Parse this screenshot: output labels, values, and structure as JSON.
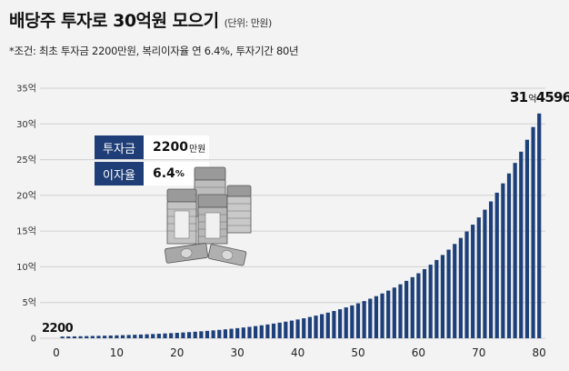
{
  "title": "배당주 투자로 30억원 모으기",
  "unit_note": "(단위: 만원)",
  "subtitle": "*조건: 최초 투자금 2200만원, 복리이자율 연 6.4%, 투자기간 80년",
  "info_box": {
    "principal_label": "투자금",
    "principal_value": "2200",
    "principal_unit": "만원",
    "rate_label": "이자율",
    "rate_value": "6.4",
    "rate_unit": "%"
  },
  "annotations": {
    "start_value": "2200",
    "end_major": "31",
    "end_major_unit": "억",
    "end_minor": "4596"
  },
  "icon": "money-stack-icon",
  "colors": {
    "bar": "#1d3f7a",
    "label_bg": "#1f3e77",
    "background": "#f3f3f3"
  },
  "chart_data": {
    "type": "bar",
    "title": "배당주 투자로 30억원 모으기",
    "xlabel": "",
    "ylabel": "",
    "x": [
      1,
      2,
      3,
      4,
      5,
      6,
      7,
      8,
      9,
      10,
      11,
      12,
      13,
      14,
      15,
      16,
      17,
      18,
      19,
      20,
      21,
      22,
      23,
      24,
      25,
      26,
      27,
      28,
      29,
      30,
      31,
      32,
      33,
      34,
      35,
      36,
      37,
      38,
      39,
      40,
      41,
      42,
      43,
      44,
      45,
      46,
      47,
      48,
      49,
      50,
      51,
      52,
      53,
      54,
      55,
      56,
      57,
      58,
      59,
      60,
      61,
      62,
      63,
      64,
      65,
      66,
      67,
      68,
      69,
      70,
      71,
      72,
      73,
      74,
      75,
      76,
      77,
      78,
      79,
      80
    ],
    "values": [
      2341,
      2491,
      2650,
      2820,
      3000,
      3192,
      3397,
      3614,
      3845,
      4091,
      4353,
      4632,
      4928,
      5243,
      5579,
      5936,
      6316,
      6720,
      7150,
      7608,
      8094,
      8612,
      9163,
      9750,
      10374,
      11038,
      11744,
      12496,
      13296,
      14147,
      15052,
      16015,
      17040,
      18131,
      19291,
      20526,
      21839,
      23237,
      24724,
      26306,
      27990,
      29781,
      31687,
      33715,
      35873,
      38169,
      40612,
      43211,
      45976,
      48919,
      52049,
      55381,
      58925,
      62696,
      66709,
      70978,
      75521,
      80354,
      85497,
      90968,
      96790,
      102985,
      109576,
      116589,
      124051,
      131990,
      140437,
      149425,
      158988,
      169163,
      179990,
      191509,
      203766,
      216807,
      230683,
      245447,
      261155,
      277869,
      295653,
      314596
    ],
    "xticks": [
      "0",
      "10",
      "20",
      "30",
      "40",
      "50",
      "60",
      "70",
      "80"
    ],
    "xtick_values": [
      0,
      10,
      20,
      30,
      40,
      50,
      60,
      70,
      80
    ],
    "yticks": [
      "0",
      "5억",
      "10억",
      "15억",
      "20억",
      "25억",
      "30억",
      "35억"
    ],
    "ytick_values": [
      0,
      50000,
      100000,
      150000,
      200000,
      250000,
      300000,
      350000
    ],
    "xlim": [
      0,
      80
    ],
    "ylim": [
      0,
      350000
    ],
    "grid": true
  }
}
